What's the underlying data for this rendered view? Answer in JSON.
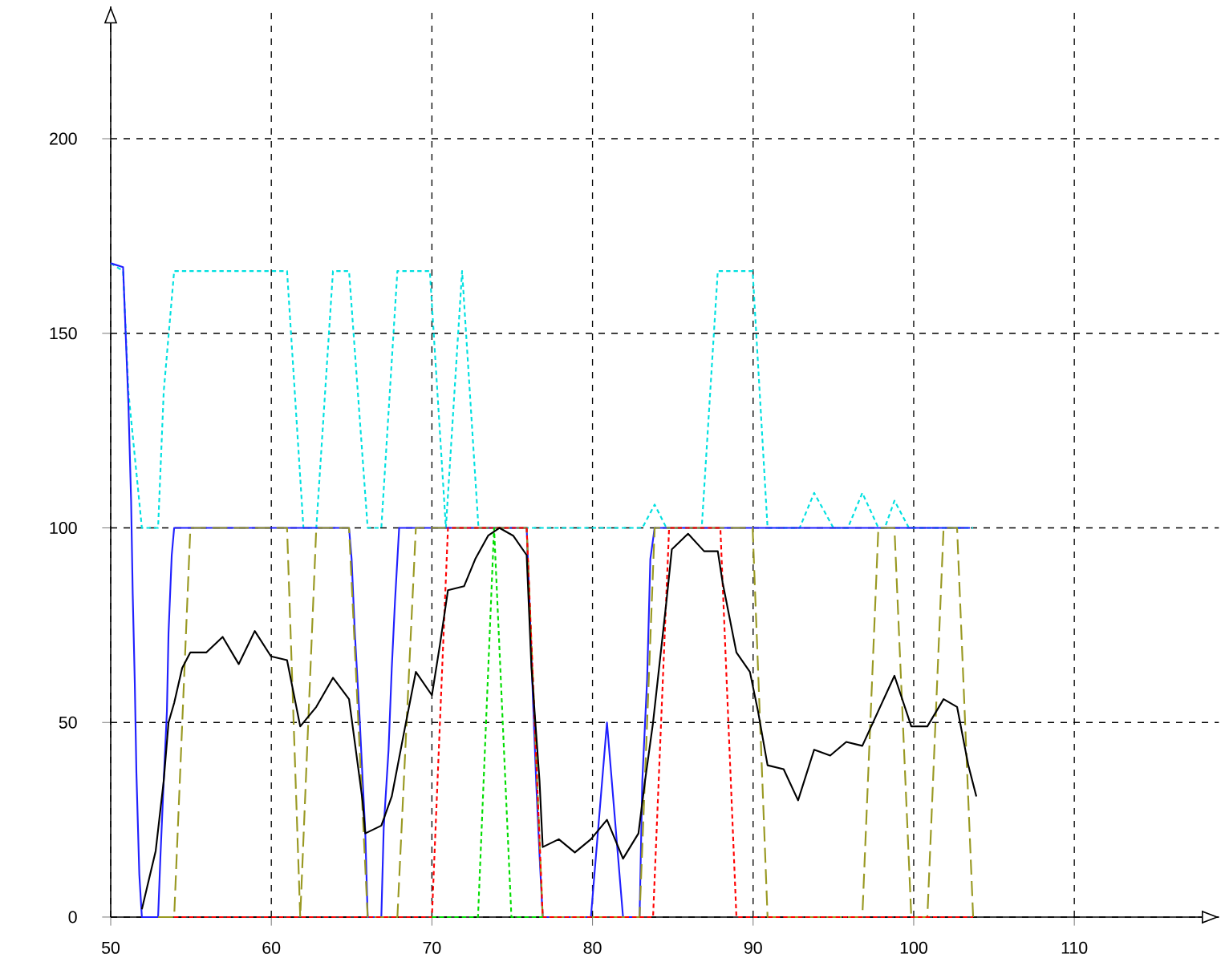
{
  "chart_data": {
    "type": "line",
    "xlim": [
      50,
      119
    ],
    "ylim": [
      0,
      234
    ],
    "xticks": [
      50,
      60,
      70,
      80,
      90,
      100,
      110
    ],
    "yticks": [
      0,
      50,
      100,
      150,
      200
    ],
    "grid": true,
    "marker": "none",
    "series": [
      {
        "color": "#00e0e0",
        "line_style": "dotted",
        "x": [
          50,
          50.77,
          51.1,
          51.94,
          52.95,
          53.3,
          53.95,
          60.98,
          62.0,
          62.8,
          63.84,
          64.84,
          66.0,
          66.85,
          67.85,
          69.87,
          70.87,
          71.88,
          72.9,
          83.1,
          83.87,
          84.6,
          86.8,
          87.8,
          89.97,
          90.9,
          92.9,
          93.8,
          95.0,
          95.9,
          96.8,
          97.8,
          98.2,
          98.8,
          99.7,
          103.7
        ],
        "values": [
          168,
          166,
          135,
          100,
          100,
          135,
          166,
          166,
          100,
          100,
          166,
          166,
          100,
          100,
          166,
          166,
          100,
          166,
          100,
          100,
          106,
          100,
          100,
          166,
          166,
          100,
          100,
          109,
          100,
          100,
          109,
          100,
          100,
          107,
          100,
          100
        ]
      },
      {
        "color": "#2020ff",
        "line_style": "solid",
        "x": [
          50,
          50.77,
          51.1,
          51.27,
          51.37,
          51.5,
          51.6,
          51.78,
          51.94,
          52.95,
          53.1,
          53.3,
          53.5,
          53.6,
          53.8,
          53.95,
          64.84,
          65.0,
          65.2,
          65.5,
          65.7,
          65.85,
          66.0,
          66.85,
          67.0,
          67.3,
          67.5,
          67.7,
          67.96,
          75.9,
          76.1,
          76.3,
          76.5,
          76.7,
          76.9,
          79.9,
          80.9,
          81.9,
          82.93,
          83.1,
          83.4,
          83.6,
          83.87,
          103.5
        ],
        "values": [
          168,
          167,
          132,
          107,
          83,
          60,
          37,
          11,
          0,
          0,
          16,
          35,
          53,
          73,
          93,
          100,
          100,
          92,
          73,
          51,
          34,
          22,
          0,
          0,
          23,
          43,
          64,
          81,
          100,
          100,
          78,
          55,
          34,
          16,
          0,
          0,
          50,
          0,
          0,
          35,
          61,
          92,
          100,
          100
        ]
      },
      {
        "color": "#999922",
        "line_style": "dashed",
        "x": [
          52.95,
          53.95,
          54.96,
          60.98,
          61.8,
          62.8,
          64.84,
          66.0,
          67.85,
          69.0,
          75.9,
          76.9,
          82.93,
          83.87,
          89.97,
          90.9,
          96.8,
          97.8,
          98.8,
          99.85,
          100.85,
          101.86,
          102.7,
          103.7
        ],
        "values": [
          0,
          0,
          100,
          100,
          0,
          100,
          100,
          0,
          0,
          100,
          100,
          0,
          0,
          100,
          100,
          0,
          0,
          100,
          100,
          0,
          0,
          100,
          100,
          0
        ]
      },
      {
        "color": "#ff0000",
        "line_style": "dotted",
        "x": [
          53.95,
          70.0,
          71.0,
          75.9,
          76.9,
          83.77,
          84.77,
          87.96,
          88.96,
          103.7
        ],
        "values": [
          0,
          0,
          100,
          100,
          0,
          0,
          100,
          100,
          0,
          0
        ]
      },
      {
        "color": "#00dd00",
        "line_style": "dotted",
        "x": [
          70.0,
          72.87,
          73.87,
          74.95,
          76.9
        ],
        "values": [
          0,
          0,
          100,
          0,
          0
        ]
      },
      {
        "color": "#000000",
        "line_style": "solid",
        "x": [
          51.94,
          52.8,
          53.3,
          53.6,
          53.95,
          54.45,
          54.96,
          55.96,
          56.97,
          57.97,
          58.97,
          59.98,
          60.98,
          61.8,
          62.8,
          63.84,
          64.84,
          65.68,
          65.85,
          66.85,
          67.5,
          68.36,
          69.0,
          70.0,
          70.5,
          71.0,
          72.0,
          72.7,
          73.5,
          74.2,
          75.06,
          75.9,
          76.2,
          76.7,
          76.9,
          77.9,
          78.9,
          79.9,
          80.9,
          81.9,
          82.86,
          83.27,
          83.77,
          84.6,
          84.94,
          85.95,
          86.95,
          87.8,
          88.1,
          88.96,
          89.8,
          90.3,
          90.9,
          91.9,
          92.8,
          93.8,
          94.8,
          95.8,
          96.8,
          97.8,
          98.8,
          99.85,
          100.85,
          101.86,
          102.7,
          103.4,
          103.9
        ],
        "values": [
          2,
          17,
          35,
          50,
          55,
          64,
          68,
          68,
          72,
          65,
          73.5,
          67,
          66,
          49,
          54,
          61.5,
          56,
          30,
          21.5,
          23.5,
          31,
          49.5,
          63,
          57,
          70,
          84,
          85,
          92,
          98,
          100,
          98,
          93,
          64,
          35,
          18,
          20,
          16.6,
          20,
          25,
          15,
          21.5,
          35,
          50,
          81,
          94.5,
          98.5,
          94,
          94,
          86,
          68,
          63,
          53,
          39,
          38,
          30,
          43,
          41.5,
          45,
          44,
          53,
          62,
          49,
          49,
          56,
          54,
          39,
          31
        ]
      }
    ]
  }
}
